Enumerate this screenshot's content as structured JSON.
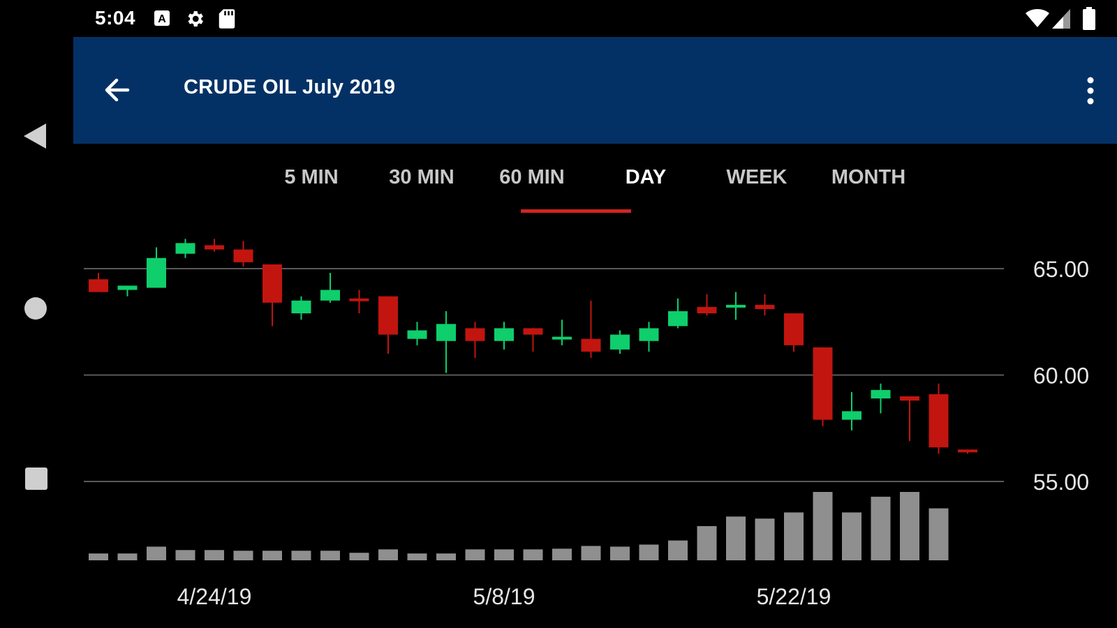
{
  "status_bar": {
    "time": "5:04",
    "left_icons": [
      "a-icon",
      "gear-icon",
      "sd-card-icon"
    ],
    "right_icons": [
      "wifi-icon",
      "signal-icon",
      "battery-icon"
    ]
  },
  "app_bar": {
    "title": "CRUDE OIL July 2019",
    "background": "#043165"
  },
  "tabs": [
    {
      "label": "5 MIN",
      "active": false
    },
    {
      "label": "30 MIN",
      "active": false
    },
    {
      "label": "60 MIN",
      "active": false
    },
    {
      "label": "DAY",
      "active": true
    },
    {
      "label": "WEEK",
      "active": false
    },
    {
      "label": "MONTH",
      "active": false
    }
  ],
  "colors": {
    "up": "#0fce6c",
    "down": "#c2150f",
    "volume": "#8f8f8f",
    "grid": "#5a5a5a",
    "tab_indicator": "#d0261c"
  },
  "chart_data": {
    "type": "candlestick",
    "y_ticks": [
      "65.00",
      "60.00",
      "55.00"
    ],
    "y_tick_values": [
      65,
      60,
      55
    ],
    "ylim": [
      55,
      67
    ],
    "x_labels": [
      {
        "label": "4/24/19",
        "index": 4
      },
      {
        "label": "5/8/19",
        "index": 14
      },
      {
        "label": "5/22/19",
        "index": 24
      }
    ],
    "candles": [
      {
        "o": 64.5,
        "h": 64.8,
        "l": 63.9,
        "c": 63.9
      },
      {
        "o": 64.0,
        "h": 64.2,
        "l": 63.7,
        "c": 64.2
      },
      {
        "o": 64.1,
        "h": 66.0,
        "l": 64.1,
        "c": 65.5
      },
      {
        "o": 65.7,
        "h": 66.4,
        "l": 65.5,
        "c": 66.2
      },
      {
        "o": 66.1,
        "h": 66.4,
        "l": 65.8,
        "c": 65.9
      },
      {
        "o": 65.9,
        "h": 66.3,
        "l": 65.1,
        "c": 65.3
      },
      {
        "o": 65.2,
        "h": 65.2,
        "l": 62.3,
        "c": 63.4
      },
      {
        "o": 62.9,
        "h": 63.7,
        "l": 62.6,
        "c": 63.5
      },
      {
        "o": 63.5,
        "h": 64.8,
        "l": 63.4,
        "c": 64.0
      },
      {
        "o": 63.6,
        "h": 64.0,
        "l": 62.9,
        "c": 63.5
      },
      {
        "o": 63.7,
        "h": 63.7,
        "l": 61.0,
        "c": 61.9
      },
      {
        "o": 61.7,
        "h": 62.5,
        "l": 61.4,
        "c": 62.1
      },
      {
        "o": 61.6,
        "h": 63.0,
        "l": 60.1,
        "c": 62.4
      },
      {
        "o": 62.2,
        "h": 62.5,
        "l": 60.8,
        "c": 61.6
      },
      {
        "o": 61.6,
        "h": 62.5,
        "l": 61.2,
        "c": 62.2
      },
      {
        "o": 62.2,
        "h": 62.2,
        "l": 61.1,
        "c": 61.9
      },
      {
        "o": 61.8,
        "h": 62.6,
        "l": 61.4,
        "c": 61.8
      },
      {
        "o": 61.7,
        "h": 63.5,
        "l": 60.8,
        "c": 61.1
      },
      {
        "o": 61.2,
        "h": 62.1,
        "l": 61.0,
        "c": 61.9
      },
      {
        "o": 61.6,
        "h": 62.5,
        "l": 61.1,
        "c": 62.2
      },
      {
        "o": 62.3,
        "h": 63.6,
        "l": 62.2,
        "c": 63.0
      },
      {
        "o": 63.2,
        "h": 63.8,
        "l": 62.8,
        "c": 62.9
      },
      {
        "o": 63.2,
        "h": 63.9,
        "l": 62.6,
        "c": 63.3
      },
      {
        "o": 63.3,
        "h": 63.8,
        "l": 62.8,
        "c": 63.1
      },
      {
        "o": 62.9,
        "h": 62.9,
        "l": 61.1,
        "c": 61.4
      },
      {
        "o": 61.3,
        "h": 61.3,
        "l": 57.6,
        "c": 57.9
      },
      {
        "o": 57.9,
        "h": 59.2,
        "l": 57.4,
        "c": 58.3
      },
      {
        "o": 58.9,
        "h": 59.6,
        "l": 58.2,
        "c": 59.3
      },
      {
        "o": 59.0,
        "h": 59.0,
        "l": 56.9,
        "c": 58.8
      },
      {
        "o": 59.1,
        "h": 59.6,
        "l": 56.3,
        "c": 56.6
      },
      {
        "o": 56.5,
        "h": 56.5,
        "l": 56.3,
        "c": 56.4
      }
    ],
    "volume": [
      0.1,
      0.1,
      0.2,
      0.15,
      0.15,
      0.14,
      0.14,
      0.14,
      0.14,
      0.11,
      0.16,
      0.1,
      0.1,
      0.16,
      0.16,
      0.16,
      0.17,
      0.21,
      0.2,
      0.23,
      0.29,
      0.5,
      0.64,
      0.61,
      0.7,
      1.0,
      0.7,
      0.93,
      1.0,
      0.76,
      0.0
    ]
  }
}
